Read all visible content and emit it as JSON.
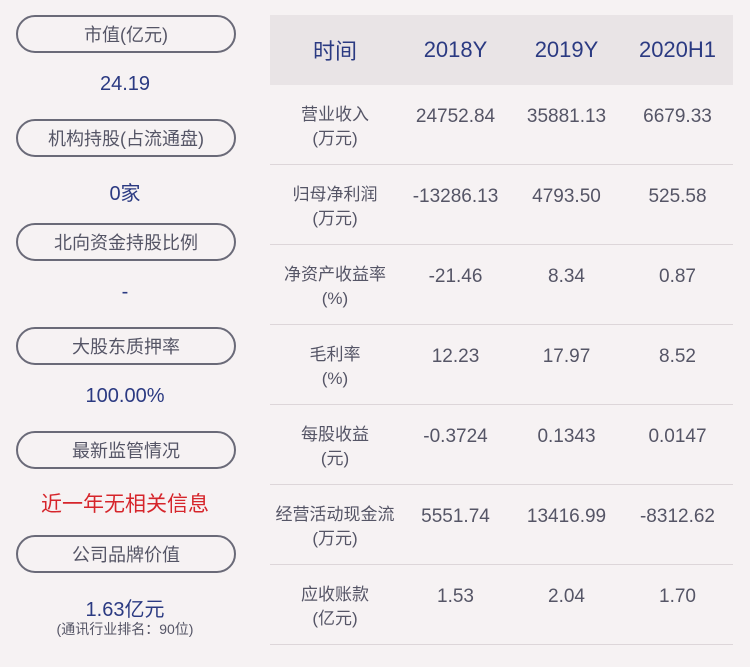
{
  "left": [
    {
      "label": "市值(亿元)",
      "value": "24.19"
    },
    {
      "label": "机构持股(占流通盘)",
      "value": "0家"
    },
    {
      "label": "北向资金持股比例",
      "value": "-"
    },
    {
      "label": "大股东质押率",
      "value": "100.00%"
    },
    {
      "label": "最新监管情况",
      "value": "近一年无相关信息"
    },
    {
      "label": "公司品牌价值",
      "value": "1.63亿元",
      "sub": "(通讯行业排名：90位)"
    }
  ],
  "table": {
    "headers": [
      "时间",
      "2018Y",
      "2019Y",
      "2020H1"
    ],
    "rows": [
      {
        "label": "营业收入",
        "unit": "(万元)",
        "values": [
          "24752.84",
          "35881.13",
          "6679.33"
        ]
      },
      {
        "label": "归母净利润",
        "unit": "(万元)",
        "values": [
          "-13286.13",
          "4793.50",
          "525.58"
        ]
      },
      {
        "label": "净资产收益率",
        "unit": "(%)",
        "values": [
          "-21.46",
          "8.34",
          "0.87"
        ]
      },
      {
        "label": "毛利率",
        "unit": "(%)",
        "values": [
          "12.23",
          "17.97",
          "8.52"
        ]
      },
      {
        "label": "每股收益",
        "unit": "(元)",
        "values": [
          "-0.3724",
          "0.1343",
          "0.0147"
        ]
      },
      {
        "label": "经营活动现金流",
        "unit": "(万元)",
        "values": [
          "5551.74",
          "13416.99",
          "-8312.62"
        ]
      },
      {
        "label": "应收账款",
        "unit": "(亿元)",
        "values": [
          "1.53",
          "2.04",
          "1.70"
        ]
      }
    ]
  },
  "colors": {
    "value_blue": "#2b3a82",
    "alert_red": "#d6252b",
    "background": "#f6f2f3"
  }
}
